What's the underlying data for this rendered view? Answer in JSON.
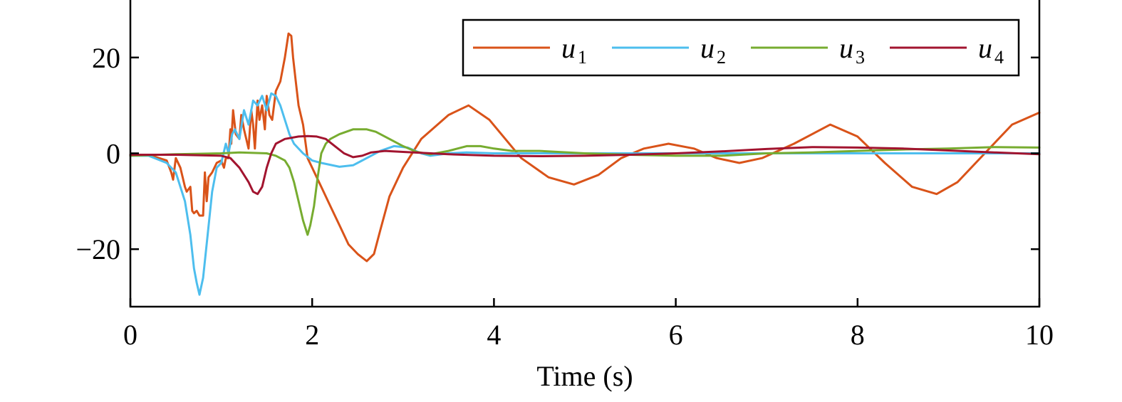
{
  "chart_data": {
    "type": "line",
    "title": "",
    "xlabel": "Time (s)",
    "ylabel": "",
    "xlim": [
      0,
      10
    ],
    "ylim": [
      -32,
      32
    ],
    "x_ticks": [
      0,
      2,
      4,
      6,
      8,
      10
    ],
    "x_tick_labels": [
      "0",
      "2",
      "4",
      "6",
      "8",
      "10"
    ],
    "y_ticks": [
      -20,
      0,
      20
    ],
    "y_tick_labels": [
      "−20",
      "0",
      "20"
    ],
    "grid": false,
    "legend": {
      "position": "top-right",
      "columns": 4
    },
    "series": [
      {
        "name": "u",
        "subscript": "1",
        "color": "#D95319",
        "x": [
          0,
          0.2,
          0.4,
          0.45,
          0.47,
          0.5,
          0.55,
          0.6,
          0.62,
          0.66,
          0.68,
          0.7,
          0.73,
          0.76,
          0.8,
          0.82,
          0.84,
          0.86,
          0.9,
          0.95,
          1.0,
          1.03,
          1.05,
          1.08,
          1.1,
          1.11,
          1.13,
          1.16,
          1.2,
          1.22,
          1.25,
          1.3,
          1.33,
          1.35,
          1.37,
          1.4,
          1.42,
          1.45,
          1.48,
          1.5,
          1.53,
          1.56,
          1.6,
          1.65,
          1.7,
          1.74,
          1.77,
          1.79,
          1.82,
          1.85,
          1.9,
          1.95,
          2.0,
          2.05,
          2.1,
          2.2,
          2.3,
          2.4,
          2.5,
          2.6,
          2.68,
          2.75,
          2.85,
          3.0,
          3.2,
          3.5,
          3.72,
          3.95,
          4.3,
          4.6,
          4.88,
          5.15,
          5.4,
          5.65,
          5.92,
          6.2,
          6.45,
          6.7,
          6.95,
          7.3,
          7.7,
          8.0,
          8.3,
          8.6,
          8.87,
          9.1,
          9.4,
          9.7,
          10.0
        ],
        "values": [
          -0.5,
          -0.3,
          -1.5,
          -4,
          -5.5,
          -1,
          -3,
          -7,
          -8,
          -7,
          -12,
          -12.5,
          -12,
          -13,
          -13,
          -4,
          -10,
          -5,
          -4,
          -2,
          -1.5,
          -3,
          -1,
          -1,
          5,
          2,
          9,
          4,
          3,
          8,
          5,
          1,
          9,
          6,
          1,
          11,
          7,
          10,
          5,
          12,
          8,
          7,
          13,
          15,
          20,
          25,
          24.5,
          20,
          15,
          10,
          6,
          -1,
          -3,
          -5,
          -7,
          -11,
          -15,
          -19,
          -21,
          -22.5,
          -21,
          -16,
          -9,
          -3,
          3,
          8,
          10,
          7,
          -1,
          -5,
          -6.5,
          -4.5,
          -1,
          1,
          2,
          1,
          -1,
          -2,
          -1,
          2,
          6,
          3.5,
          -2,
          -7,
          -8.5,
          -6,
          0,
          6,
          8.5
        ]
      },
      {
        "name": "u",
        "subscript": "2",
        "color": "#4DBEEE",
        "x": [
          0,
          0.2,
          0.4,
          0.5,
          0.6,
          0.66,
          0.7,
          0.73,
          0.76,
          0.8,
          0.85,
          0.9,
          0.95,
          1.0,
          1.05,
          1.08,
          1.12,
          1.15,
          1.2,
          1.25,
          1.3,
          1.35,
          1.4,
          1.45,
          1.5,
          1.55,
          1.6,
          1.65,
          1.7,
          1.75,
          1.8,
          1.9,
          2.0,
          2.1,
          2.3,
          2.45,
          2.6,
          2.75,
          2.9,
          3.05,
          3.2,
          3.3,
          3.5,
          3.7,
          4.0,
          4.5,
          5.0,
          6.0,
          7.0,
          8.0,
          9.0,
          10.0
        ],
        "values": [
          -0.5,
          -0.5,
          -2,
          -4,
          -10,
          -17,
          -24,
          -27,
          -29.5,
          -26,
          -17,
          -8,
          -3,
          -2,
          2,
          0,
          4,
          5,
          3,
          9,
          6,
          11,
          10,
          12,
          9,
          12.5,
          12,
          10,
          7,
          4,
          2,
          0,
          -1.5,
          -2,
          -2.8,
          -2.5,
          -1,
          0.5,
          1.5,
          1.2,
          0,
          -0.5,
          0,
          0.2,
          0,
          0,
          0,
          0,
          0,
          0,
          0,
          0
        ]
      },
      {
        "name": "u",
        "subscript": "3",
        "color": "#77AC30",
        "x": [
          0,
          0.5,
          1.0,
          1.2,
          1.5,
          1.6,
          1.7,
          1.75,
          1.8,
          1.85,
          1.9,
          1.95,
          1.98,
          2.02,
          2.06,
          2.1,
          2.15,
          2.2,
          2.3,
          2.45,
          2.6,
          2.7,
          2.85,
          3.0,
          3.15,
          3.3,
          3.5,
          3.7,
          3.85,
          4.0,
          4.2,
          4.5,
          5.0,
          5.5,
          6.0,
          6.5,
          7.0,
          7.5,
          8.0,
          8.5,
          9.0,
          9.5,
          10.0
        ],
        "values": [
          -0.5,
          -0.2,
          0,
          0.2,
          0,
          -0.5,
          -1.5,
          -3,
          -6,
          -10,
          -14,
          -17,
          -15,
          -11,
          -5,
          0,
          2,
          3,
          4,
          5,
          5,
          4.5,
          3,
          1.5,
          0.3,
          -0.2,
          0.5,
          1.5,
          1.5,
          1.0,
          0.5,
          0.5,
          0,
          -0.3,
          -0.5,
          -0.5,
          0,
          0.2,
          0.5,
          0.8,
          1.0,
          1.3,
          1.2
        ]
      },
      {
        "name": "u",
        "subscript": "4",
        "color": "#A2142F",
        "x": [
          0,
          0.5,
          1.0,
          1.1,
          1.2,
          1.3,
          1.35,
          1.4,
          1.45,
          1.5,
          1.55,
          1.6,
          1.7,
          1.85,
          1.95,
          2.05,
          2.15,
          2.25,
          2.35,
          2.45,
          2.55,
          2.65,
          2.8,
          3.0,
          3.5,
          4.0,
          4.5,
          5.0,
          5.5,
          6.0,
          6.5,
          7.0,
          7.5,
          8.0,
          8.5,
          9.0,
          9.5,
          10.0
        ],
        "values": [
          -0.3,
          -0.3,
          -0.5,
          -1,
          -3,
          -6,
          -8,
          -8.5,
          -7,
          -3,
          0,
          2,
          3,
          3.5,
          3.6,
          3.5,
          3,
          1.5,
          0,
          -0.8,
          -0.5,
          0.2,
          0.5,
          0.3,
          -0.2,
          -0.5,
          -0.6,
          -0.5,
          -0.3,
          0,
          0.4,
          0.9,
          1.3,
          1.2,
          1.0,
          0.6,
          0.2,
          -0.2
        ]
      }
    ]
  }
}
